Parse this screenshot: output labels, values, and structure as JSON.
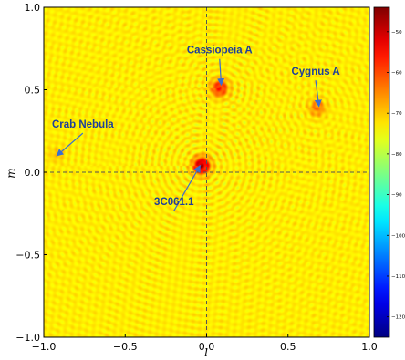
{
  "chart_data": {
    "type": "heatmap",
    "title": "",
    "xlabel": "l",
    "ylabel": "m",
    "xlim": [
      -1.0,
      1.0
    ],
    "ylim": [
      -1.0,
      1.0
    ],
    "x_ticks": [
      -1.0,
      -0.5,
      0.0,
      0.5,
      1.0
    ],
    "x_tick_labels": [
      "−1.0",
      "−0.5",
      "0.0",
      "0.5",
      "1.0"
    ],
    "y_ticks": [
      -1.0,
      -0.5,
      0.0,
      0.5,
      1.0
    ],
    "y_tick_labels": [
      "−1.0",
      "−0.5",
      "0.0",
      "0.5",
      "1.0"
    ],
    "grid": false,
    "crosshair": {
      "l": 0.0,
      "m": 0.0,
      "style": "dashed"
    },
    "sources": [
      {
        "name": "3C061.1",
        "l": -0.03,
        "m": 0.04,
        "strength": 1.0
      },
      {
        "name": "Cassiopeia A",
        "l": 0.08,
        "m": 0.51,
        "strength": 0.65
      },
      {
        "name": "Cygnus A",
        "l": 0.68,
        "m": 0.39,
        "strength": 0.35
      },
      {
        "name": "Crab Nebula",
        "l": -0.92,
        "m": 0.11,
        "strength": 0.12
      }
    ],
    "annotations": [
      {
        "text": "Cassiopeia A",
        "text_l": 0.08,
        "text_m": 0.72,
        "arrow_to_l": 0.09,
        "arrow_to_m": 0.53
      },
      {
        "text": "Cygnus A",
        "text_l": 0.67,
        "text_m": 0.59,
        "arrow_to_l": 0.69,
        "arrow_to_m": 0.4
      },
      {
        "text": "Crab Nebula",
        "text_l": -0.76,
        "text_m": 0.27,
        "arrow_to_l": -0.92,
        "arrow_to_m": 0.1
      },
      {
        "text": "3C061.1",
        "text_l": -0.2,
        "text_m": -0.2,
        "arrow_to_l": -0.04,
        "arrow_to_m": 0.04
      }
    ],
    "colorbar": {
      "colormap": "jet",
      "range": [
        -125,
        -44
      ],
      "ticks": [
        -50,
        -60,
        -70,
        -80,
        -90,
        -100,
        -110,
        -120
      ],
      "tick_labels": [
        "−50",
        "−60",
        "−70",
        "−80",
        "−90",
        "−100",
        "−110",
        "−120"
      ],
      "background_level": -73
    },
    "annotation_color": "#1f3f9a",
    "crosshair_color": "#555555"
  }
}
